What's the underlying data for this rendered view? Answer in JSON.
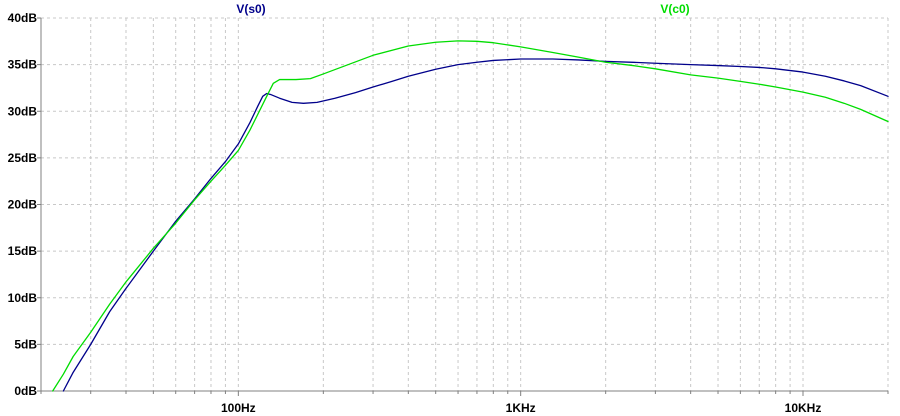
{
  "chart_data": {
    "type": "line",
    "x_scale": "log",
    "xlim": [
      20,
      20000
    ],
    "ylim": [
      0,
      40
    ],
    "grid": true,
    "y_ticks": [
      0,
      5,
      10,
      15,
      20,
      25,
      30,
      35,
      40
    ],
    "y_tick_labels": [
      "0dB",
      "5dB",
      "10dB",
      "15dB",
      "20dB",
      "25dB",
      "30dB",
      "35dB",
      "40dB"
    ],
    "x_ticks": [
      100,
      1000,
      10000
    ],
    "x_tick_labels": [
      "100Hz",
      "1KHz",
      "10KHz"
    ],
    "series": [
      {
        "name": "V(s0)",
        "color": "#00008b",
        "x": [
          24,
          26,
          30,
          35,
          40,
          50,
          60,
          70,
          80,
          90,
          100,
          110,
          117,
          122,
          126,
          130,
          140,
          155,
          170,
          190,
          220,
          260,
          300,
          350,
          400,
          500,
          600,
          700,
          800,
          1000,
          1300,
          1600,
          2000,
          2500,
          3000,
          4000,
          5000,
          6000,
          7000,
          8000,
          10000,
          12000,
          14000,
          16000,
          20000
        ],
        "values": [
          0.0,
          2.0,
          5.0,
          8.5,
          11.0,
          15.0,
          18.2,
          20.6,
          22.8,
          24.6,
          26.5,
          28.8,
          30.5,
          31.6,
          31.9,
          31.8,
          31.4,
          30.95,
          30.85,
          30.95,
          31.4,
          32.0,
          32.6,
          33.2,
          33.75,
          34.5,
          35.0,
          35.25,
          35.45,
          35.6,
          35.6,
          35.5,
          35.35,
          35.25,
          35.15,
          35.0,
          34.9,
          34.8,
          34.7,
          34.55,
          34.2,
          33.75,
          33.25,
          32.75,
          31.6
        ]
      },
      {
        "name": "V(c0)",
        "color": "#00dd00",
        "x": [
          22,
          24,
          26,
          30,
          35,
          40,
          50,
          60,
          70,
          80,
          90,
          100,
          110,
          120,
          127,
          133,
          140,
          160,
          180,
          200,
          250,
          300,
          400,
          500,
          600,
          700,
          800,
          1000,
          1300,
          1600,
          2000,
          2500,
          3000,
          4000,
          5000,
          6000,
          7000,
          8000,
          10000,
          12000,
          14000,
          16000,
          20000
        ],
        "values": [
          0.0,
          1.8,
          3.7,
          6.3,
          9.3,
          11.7,
          15.3,
          18.0,
          20.5,
          22.5,
          24.2,
          25.8,
          28.0,
          30.3,
          31.8,
          33.0,
          33.4,
          33.4,
          33.5,
          34.0,
          35.1,
          36.0,
          37.0,
          37.4,
          37.55,
          37.5,
          37.35,
          36.9,
          36.3,
          35.8,
          35.25,
          34.9,
          34.55,
          33.9,
          33.55,
          33.2,
          32.9,
          32.6,
          32.05,
          31.5,
          30.85,
          30.2,
          28.9
        ]
      }
    ]
  }
}
